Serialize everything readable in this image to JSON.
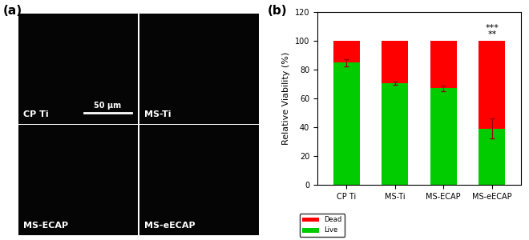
{
  "chart_data": {
    "type": "bar",
    "stacked": true,
    "panel_label": "(b)",
    "y_label": "Relative Viability (%)",
    "categories": [
      "CP Ti",
      "MS-Ti",
      "MS-ECAP",
      "MS-eECAP"
    ],
    "series": [
      {
        "name": "Live",
        "color": "#00cc00",
        "values": [
          85,
          70.5,
          67,
          39
        ],
        "errors": [
          2.5,
          1,
          2,
          7
        ]
      },
      {
        "name": "Dead",
        "color": "#ff0000",
        "values": [
          15,
          29.5,
          33,
          61
        ]
      }
    ],
    "legend_order": [
      "Dead",
      "Live"
    ],
    "legend": "lower left",
    "annotations": [
      {
        "text": "***",
        "category": "MS-eECAP"
      },
      {
        "text": "**",
        "category": "MS-eECAP"
      }
    ],
    "ylim": [
      0,
      120
    ],
    "yticks": [
      0,
      20,
      40,
      60,
      80,
      100,
      120
    ]
  },
  "images": {
    "panel_label": "(a)",
    "tiles": [
      "CP Ti",
      "MS-Ti",
      "MS-ECAP",
      "MS-eECAP"
    ],
    "scale_bar": "50 μm"
  }
}
